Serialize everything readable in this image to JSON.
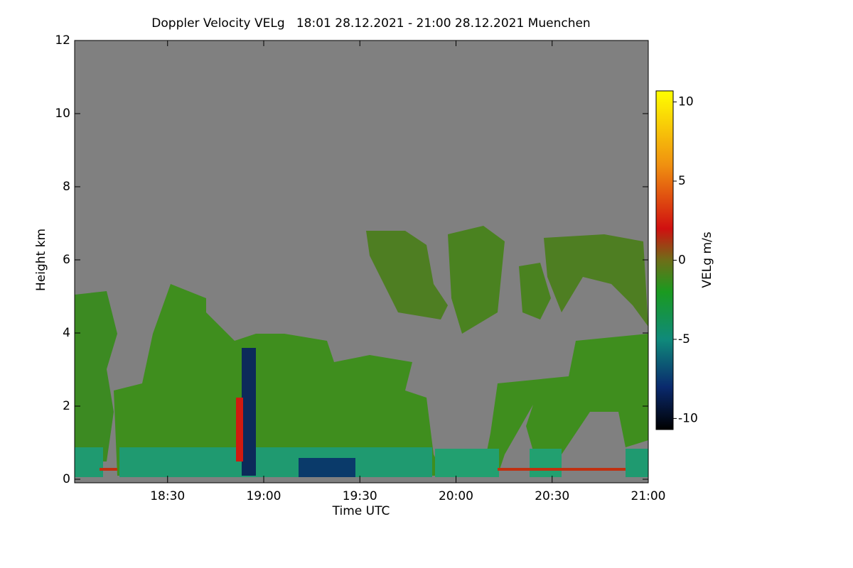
{
  "chart_data": {
    "type": "heatmap",
    "title": "Doppler Velocity VELg   18:01 28.12.2021 - 21:00 28.12.2021 Muenchen",
    "xlabel": "Time UTC",
    "ylabel": "Height km",
    "xlim": [
      1081,
      1260
    ],
    "xticks": [
      {
        "value": 1110,
        "label": "18:30"
      },
      {
        "value": 1140,
        "label": "19:00"
      },
      {
        "value": 1170,
        "label": "19:30"
      },
      {
        "value": 1200,
        "label": "20:00"
      },
      {
        "value": 1230,
        "label": "20:30"
      },
      {
        "value": 1260,
        "label": "21:00"
      }
    ],
    "ylim": [
      0,
      12
    ],
    "yticks": [
      0,
      2,
      4,
      6,
      8,
      10,
      12
    ],
    "colorbar": {
      "label": "VELg m/s",
      "zlim": [
        -10.7,
        10.7
      ],
      "zticks": [
        -10,
        -5,
        0,
        5,
        10
      ],
      "colorscale": [
        {
          "value": -10.7,
          "color": "#000000"
        },
        {
          "value": -8,
          "color": "#0a2a6e"
        },
        {
          "value": -5,
          "color": "#0f8a7a"
        },
        {
          "value": -2,
          "color": "#1a9a20"
        },
        {
          "value": 0,
          "color": "#6e6e18"
        },
        {
          "value": 2,
          "color": "#d01010"
        },
        {
          "value": 6,
          "color": "#f09010"
        },
        {
          "value": 10.7,
          "color": "#ffff00"
        }
      ]
    }
  }
}
